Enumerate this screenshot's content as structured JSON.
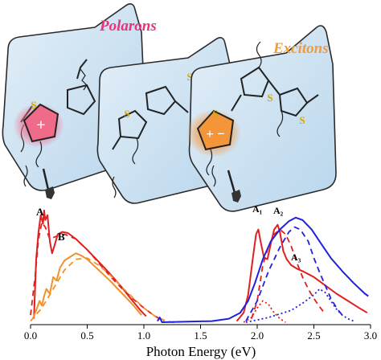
{
  "panels": {
    "polarons_title": "Polarons",
    "excitons_title": "Excitons",
    "polaron_charge": "+",
    "exciton_charge": "+ −",
    "sulfur": "S"
  },
  "peak_labels": {
    "A": "A",
    "B": "B",
    "A1": "A₁",
    "A2": "A₂",
    "A3": "A₃"
  },
  "colors": {
    "polarons_title": "#e8327a",
    "excitons_title": "#f29a3c",
    "red_series": "#e02020",
    "orange_series": "#f0922c",
    "blue_series": "#2020e0",
    "panel_fill": "#cde3f3",
    "polaron_glow": "#f06a8a",
    "exciton_glow": "#f5953a"
  },
  "chart_data": {
    "type": "line",
    "xlabel": "Photon Energy (eV)",
    "ylabel": "",
    "xlim": [
      0.0,
      3.0
    ],
    "x_ticks": [
      "0.0",
      "0.5",
      "1.0",
      "1.5",
      "2.0",
      "2.5",
      "3.0"
    ],
    "series": [
      {
        "color": "red",
        "style": "solid",
        "points": [
          [
            0.03,
            0.05
          ],
          [
            0.05,
            0.55
          ],
          [
            0.07,
            0.78
          ],
          [
            0.09,
            0.92
          ],
          [
            0.11,
            0.85
          ],
          [
            0.12,
            0.96
          ],
          [
            0.13,
            0.88
          ],
          [
            0.15,
            0.92
          ],
          [
            0.17,
            0.7
          ],
          [
            0.19,
            0.6
          ],
          [
            0.21,
            0.66
          ],
          [
            0.24,
            0.76
          ],
          [
            0.28,
            0.78
          ],
          [
            0.33,
            0.77
          ],
          [
            0.4,
            0.72
          ],
          [
            0.5,
            0.63
          ],
          [
            0.6,
            0.53
          ],
          [
            0.7,
            0.43
          ],
          [
            0.8,
            0.32
          ],
          [
            0.9,
            0.2
          ],
          [
            0.97,
            0.12
          ],
          [
            1.02,
            0.07
          ]
        ]
      },
      {
        "color": "red",
        "style": "dashed",
        "points": [
          [
            0.0,
            0.08
          ],
          [
            0.04,
            0.4
          ],
          [
            0.07,
            0.72
          ],
          [
            0.1,
            0.86
          ],
          [
            0.13,
            0.82
          ],
          [
            0.17,
            0.72
          ],
          [
            0.22,
            0.74
          ],
          [
            0.3,
            0.76
          ],
          [
            0.4,
            0.72
          ],
          [
            0.5,
            0.63
          ],
          [
            0.6,
            0.52
          ],
          [
            0.7,
            0.41
          ],
          [
            0.8,
            0.31
          ],
          [
            0.9,
            0.22
          ],
          [
            1.0,
            0.14
          ],
          [
            1.1,
            0.07
          ],
          [
            1.18,
            0.03
          ]
        ]
      },
      {
        "color": "orange",
        "style": "solid",
        "points": [
          [
            0.02,
            0.05
          ],
          [
            0.05,
            0.12
          ],
          [
            0.08,
            0.2
          ],
          [
            0.1,
            0.16
          ],
          [
            0.12,
            0.24
          ],
          [
            0.14,
            0.3
          ],
          [
            0.17,
            0.26
          ],
          [
            0.2,
            0.4
          ],
          [
            0.23,
            0.37
          ],
          [
            0.26,
            0.48
          ],
          [
            0.3,
            0.54
          ],
          [
            0.35,
            0.57
          ],
          [
            0.4,
            0.6
          ],
          [
            0.45,
            0.58
          ],
          [
            0.5,
            0.55
          ],
          [
            0.6,
            0.46
          ],
          [
            0.7,
            0.37
          ],
          [
            0.8,
            0.27
          ],
          [
            0.9,
            0.17
          ],
          [
            0.98,
            0.08
          ]
        ]
      },
      {
        "color": "orange",
        "style": "dashed",
        "points": [
          [
            0.0,
            0.03
          ],
          [
            0.1,
            0.14
          ],
          [
            0.2,
            0.3
          ],
          [
            0.3,
            0.46
          ],
          [
            0.4,
            0.55
          ],
          [
            0.5,
            0.56
          ],
          [
            0.6,
            0.5
          ],
          [
            0.7,
            0.42
          ],
          [
            0.8,
            0.32
          ],
          [
            0.9,
            0.23
          ],
          [
            1.0,
            0.14
          ],
          [
            1.1,
            0.07
          ],
          [
            1.2,
            0.03
          ],
          [
            1.3,
            0.01
          ]
        ]
      },
      {
        "color": "red",
        "style": "solid",
        "points": [
          [
            1.82,
            0.03
          ],
          [
            1.88,
            0.1
          ],
          [
            1.92,
            0.25
          ],
          [
            1.96,
            0.55
          ],
          [
            1.99,
            0.76
          ],
          [
            2.01,
            0.8
          ],
          [
            2.03,
            0.7
          ],
          [
            2.06,
            0.56
          ],
          [
            2.09,
            0.55
          ],
          [
            2.12,
            0.68
          ],
          [
            2.15,
            0.8
          ],
          [
            2.18,
            0.84
          ],
          [
            2.2,
            0.78
          ],
          [
            2.23,
            0.62
          ],
          [
            2.26,
            0.55
          ],
          [
            2.3,
            0.5
          ],
          [
            2.35,
            0.47
          ],
          [
            2.4,
            0.45
          ],
          [
            2.5,
            0.4
          ],
          [
            2.6,
            0.33
          ],
          [
            2.7,
            0.26
          ],
          [
            2.8,
            0.2
          ],
          [
            2.9,
            0.14
          ],
          [
            2.97,
            0.1
          ]
        ]
      },
      {
        "color": "red",
        "style": "dashed",
        "points": [
          [
            1.95,
            0.05
          ],
          [
            2.0,
            0.2
          ],
          [
            2.05,
            0.5
          ],
          [
            2.1,
            0.66
          ],
          [
            2.15,
            0.76
          ],
          [
            2.2,
            0.8
          ],
          [
            2.25,
            0.76
          ],
          [
            2.3,
            0.66
          ],
          [
            2.35,
            0.52
          ],
          [
            2.4,
            0.4
          ],
          [
            2.45,
            0.3
          ],
          [
            2.5,
            0.22
          ],
          [
            2.55,
            0.15
          ],
          [
            2.6,
            0.09
          ]
        ]
      },
      {
        "color": "blue",
        "style": "solid",
        "points": [
          [
            1.12,
            0.03
          ],
          [
            1.14,
            0.06
          ],
          [
            1.16,
            0.02
          ],
          [
            1.6,
            0.03
          ],
          [
            1.75,
            0.05
          ],
          [
            1.85,
            0.1
          ],
          [
            1.92,
            0.2
          ],
          [
            1.98,
            0.35
          ],
          [
            2.05,
            0.55
          ],
          [
            2.12,
            0.7
          ],
          [
            2.2,
            0.8
          ],
          [
            2.28,
            0.87
          ],
          [
            2.34,
            0.9
          ],
          [
            2.4,
            0.88
          ],
          [
            2.48,
            0.8
          ],
          [
            2.55,
            0.7
          ],
          [
            2.65,
            0.56
          ],
          [
            2.75,
            0.45
          ],
          [
            2.85,
            0.35
          ],
          [
            2.95,
            0.26
          ],
          [
            2.98,
            0.24
          ]
        ]
      },
      {
        "color": "blue",
        "style": "dashed",
        "points": [
          [
            1.9,
            0.03
          ],
          [
            2.0,
            0.2
          ],
          [
            2.1,
            0.45
          ],
          [
            2.2,
            0.65
          ],
          [
            2.28,
            0.78
          ],
          [
            2.33,
            0.82
          ],
          [
            2.38,
            0.8
          ],
          [
            2.45,
            0.7
          ],
          [
            2.5,
            0.56
          ],
          [
            2.55,
            0.44
          ],
          [
            2.6,
            0.33
          ],
          [
            2.65,
            0.22
          ],
          [
            2.7,
            0.14
          ],
          [
            2.75,
            0.08
          ]
        ]
      },
      {
        "color": "blue",
        "style": "dotted",
        "points": [
          [
            1.9,
            0.02
          ],
          [
            2.0,
            0.04
          ],
          [
            2.1,
            0.06
          ],
          [
            2.2,
            0.09
          ],
          [
            2.3,
            0.12
          ],
          [
            2.4,
            0.18
          ],
          [
            2.5,
            0.25
          ],
          [
            2.55,
            0.3
          ],
          [
            2.6,
            0.27
          ],
          [
            2.65,
            0.2
          ],
          [
            2.7,
            0.13
          ],
          [
            2.75,
            0.08
          ],
          [
            2.8,
            0.05
          ],
          [
            2.85,
            0.03
          ]
        ]
      },
      {
        "color": "red",
        "style": "dotted",
        "points": [
          [
            1.88,
            0.02
          ],
          [
            1.95,
            0.06
          ],
          [
            2.0,
            0.14
          ],
          [
            2.05,
            0.2
          ],
          [
            2.1,
            0.17
          ],
          [
            2.15,
            0.1
          ],
          [
            2.2,
            0.05
          ],
          [
            2.25,
            0.02
          ]
        ]
      }
    ]
  }
}
